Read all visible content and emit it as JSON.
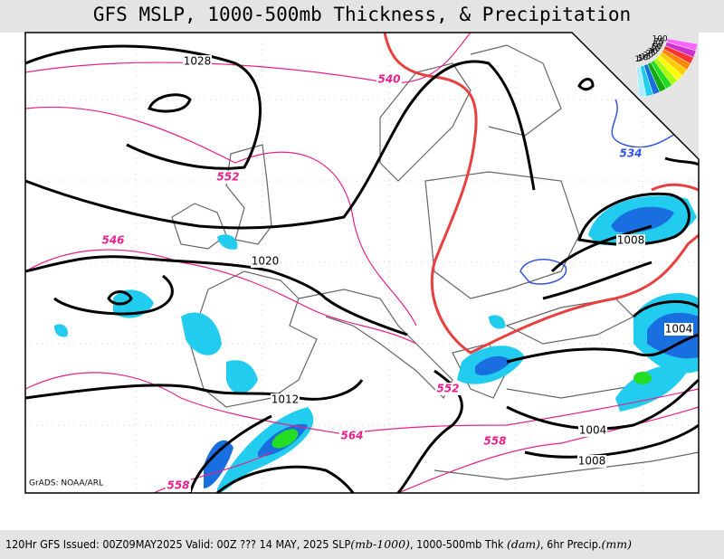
{
  "header": {
    "title": "GFS MSLP, 1000-500mb Thickness, & Precipitation"
  },
  "map": {
    "isobar_labels": [
      1028,
      1020,
      1008,
      1004,
      1012,
      1004,
      1008
    ],
    "thickness_labels": [
      540,
      552,
      546,
      534,
      552,
      564,
      558,
      558
    ],
    "credit": "GrADS: NOAA/ARL"
  },
  "colorbar": {
    "labels": [
      100,
      75,
      60,
      50,
      40,
      30,
      25,
      20,
      15,
      10,
      5,
      1
    ]
  },
  "footer": {
    "segments": [
      "120Hr GFS Issued: 00Z09MAY2025 Valid: 00Z ??? 14 MAY, 2025",
      "SLP",
      "(mb-1000)",
      ", 1000-500mb Thk",
      "(dam)",
      ", 6hr Precip.",
      "(mm)"
    ]
  }
}
